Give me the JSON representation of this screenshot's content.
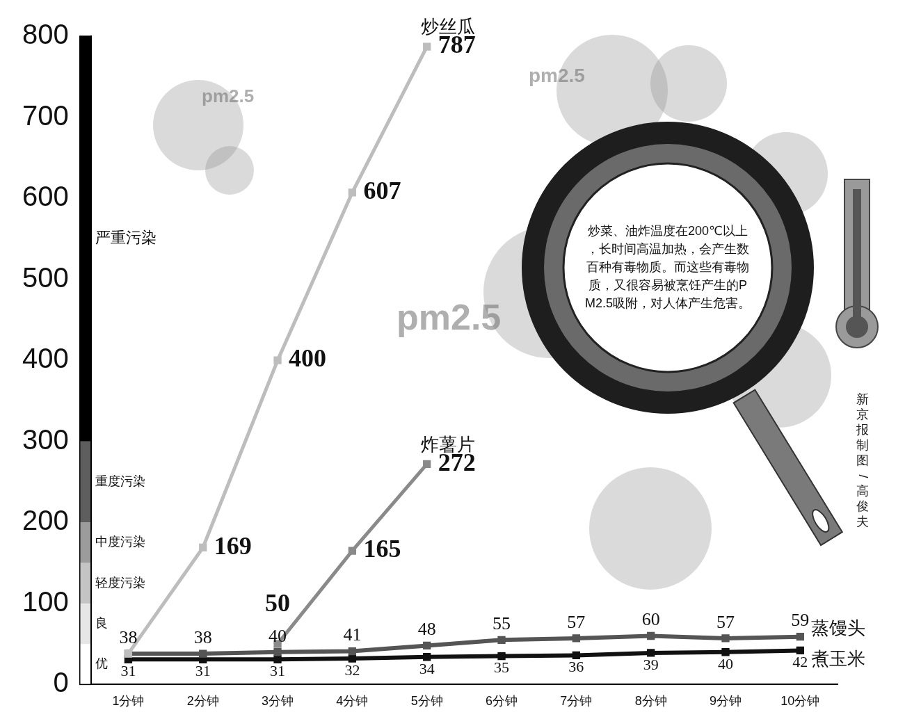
{
  "chart_data": {
    "type": "line",
    "categories": [
      "1分钟",
      "2分钟",
      "3分钟",
      "4分钟",
      "5分钟",
      "6分钟",
      "7分钟",
      "8分钟",
      "9分钟",
      "10分钟"
    ],
    "series": [
      {
        "name": "炒丝瓜",
        "color": "#bdbdbd",
        "marker": "square",
        "values": [
          38,
          169,
          400,
          607,
          787,
          null,
          null,
          null,
          null,
          null
        ],
        "value_labels": [
          null,
          "169",
          "400",
          "607",
          "787",
          null,
          null,
          null,
          null,
          null
        ]
      },
      {
        "name": "炸薯片",
        "color": "#8a8a8a",
        "marker": "square",
        "values": [
          null,
          null,
          50,
          165,
          272,
          null,
          null,
          null,
          null,
          null
        ]
      },
      {
        "name": "蒸馒头",
        "color": "#555555",
        "marker": "square",
        "values": [
          38,
          38,
          40,
          41,
          48,
          55,
          57,
          60,
          57,
          59
        ]
      },
      {
        "name": "煮玉米",
        "color": "#111111",
        "marker": "square",
        "values": [
          31,
          31,
          31,
          32,
          34,
          35,
          36,
          39,
          40,
          42
        ]
      }
    ],
    "ylim": [
      0,
      800
    ],
    "yticks": [
      0,
      100,
      200,
      300,
      400,
      500,
      600,
      700,
      800
    ],
    "grid": false,
    "data_labels": true,
    "pollution_bands": [
      {
        "from": 0,
        "to": 50,
        "label": "优"
      },
      {
        "from": 50,
        "to": 100,
        "label": "良"
      },
      {
        "from": 100,
        "to": 150,
        "label": "轻度污染"
      },
      {
        "from": 150,
        "to": 200,
        "label": "中度污染"
      },
      {
        "from": 200,
        "to": 300,
        "label": "重度污染"
      },
      {
        "from": 300,
        "to": 800,
        "label": "严重污染"
      }
    ],
    "note": "炒菜、油炸温度在200℃以上，长时间高温加热，会产生数百种有毒物质。而这些有毒物质，又很容易被烹饪产生的PM2.5吸附，对人体产生危害。",
    "watermarks": [
      "pm2.5",
      "pm2.5",
      "pm2.5"
    ],
    "credit": "新京报制图/高俊夫"
  }
}
